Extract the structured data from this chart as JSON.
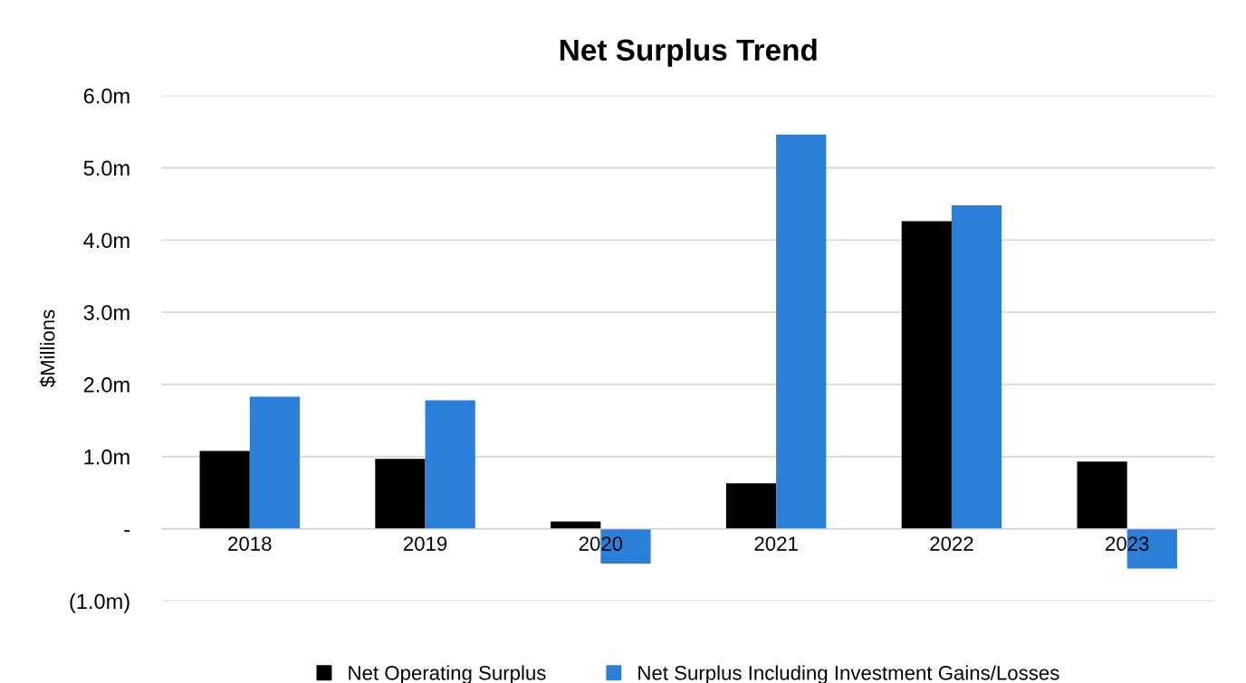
{
  "chart_data": {
    "type": "bar",
    "title": "Net Surplus Trend",
    "ylabel": "$Millions",
    "categories": [
      "2018",
      "2019",
      "2020",
      "2021",
      "2022",
      "2023"
    ],
    "series": [
      {
        "name": "Net Operating Surplus",
        "color": "#000000",
        "values": [
          1.08,
          0.97,
          0.1,
          0.63,
          4.26,
          0.93
        ]
      },
      {
        "name": "Net Surplus Including Investment Gains/Losses",
        "color": "#2b7fd9",
        "values": [
          1.83,
          1.78,
          -0.48,
          5.46,
          4.48,
          -0.55
        ]
      }
    ],
    "ylim": [
      -1.0,
      6.0
    ],
    "yticks": [
      {
        "value": -1.0,
        "label": "(1.0m)"
      },
      {
        "value": 0,
        "label": "-"
      },
      {
        "value": 1.0,
        "label": "1.0m"
      },
      {
        "value": 2.0,
        "label": "2.0m"
      },
      {
        "value": 3.0,
        "label": "3.0m"
      },
      {
        "value": 4.0,
        "label": "4.0m"
      },
      {
        "value": 5.0,
        "label": "5.0m"
      },
      {
        "value": 6.0,
        "label": "6.0m"
      }
    ],
    "grid": "y",
    "legend": "bottom"
  }
}
